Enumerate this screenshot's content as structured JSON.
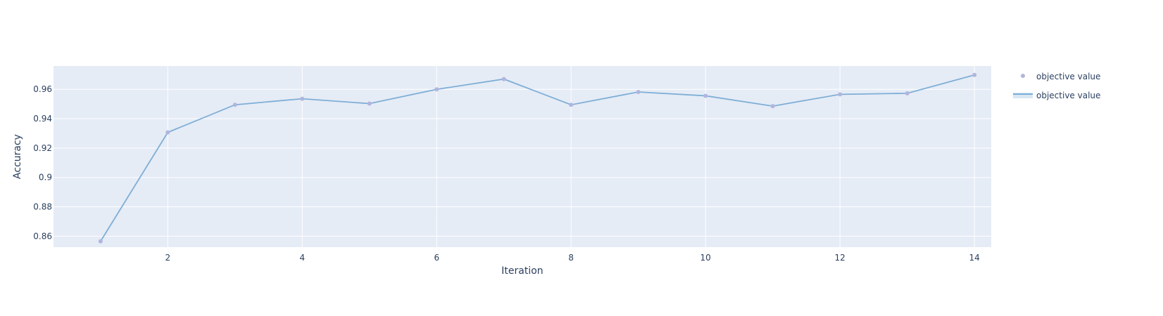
{
  "chart_data": {
    "type": "line",
    "title": "",
    "xlabel": "Iteration",
    "ylabel": "Accuracy",
    "xlim": [
      0.3,
      14.25
    ],
    "ylim": [
      0.8525,
      0.9759
    ],
    "x_ticks": [
      2,
      4,
      6,
      8,
      10,
      12,
      14
    ],
    "x_tick_labels": [
      "2",
      "4",
      "6",
      "8",
      "10",
      "12",
      "14"
    ],
    "y_ticks": [
      0.86,
      0.88,
      0.9,
      0.92,
      0.94,
      0.96
    ],
    "y_tick_labels": [
      "0.86",
      "0.88",
      "0.9",
      "0.92",
      "0.94",
      "0.96"
    ],
    "grid": true,
    "legend_position": "top-right",
    "series": [
      {
        "name": "objective value",
        "mode": "markers",
        "color": "#b1b5de",
        "x": [
          1,
          2,
          3,
          4,
          5,
          6,
          7,
          8,
          9,
          10,
          11,
          12,
          13,
          14
        ],
        "y": [
          0.8565,
          0.9307,
          0.9495,
          0.9536,
          0.9503,
          0.96,
          0.967,
          0.9495,
          0.9582,
          0.9556,
          0.9486,
          0.9566,
          0.9573,
          0.9698
        ]
      },
      {
        "name": "objective value",
        "mode": "lines",
        "color": "#7faed6",
        "x": [
          1,
          2,
          3,
          4,
          5,
          6,
          7,
          8,
          9,
          10,
          11,
          12,
          13,
          14
        ],
        "y": [
          0.8565,
          0.9307,
          0.9495,
          0.9536,
          0.9503,
          0.96,
          0.967,
          0.9495,
          0.9582,
          0.9556,
          0.9486,
          0.9566,
          0.9573,
          0.9698
        ]
      }
    ]
  },
  "colors": {
    "plot_bg": "#e5ecf6",
    "grid": "#ffffff",
    "text": "#2a3f5f"
  }
}
